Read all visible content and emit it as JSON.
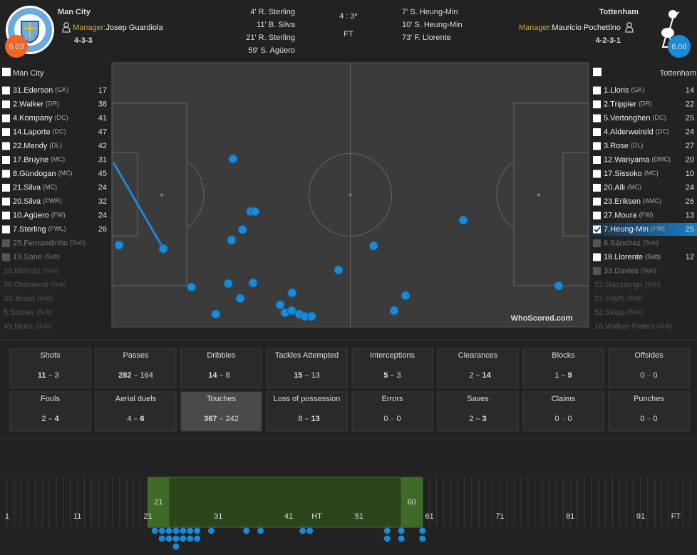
{
  "header": {
    "home": {
      "name": "Man City",
      "rating": 6.03,
      "manager_label": "Manager:",
      "manager": "Josep Guardiola",
      "formation": "4-3-3",
      "goals": [
        "4' R. Sterling",
        "11' B. Silva",
        "21' R. Sterling",
        "59' S. Agüero"
      ]
    },
    "away": {
      "name": "Tottenham",
      "rating": 6.06,
      "manager_label": "Manager:",
      "manager": "Mauricio Pochettino",
      "formation": "4-2-3-1",
      "goals": [
        "7' S. Heung-Min",
        "10' S. Heung-Min",
        "73' F. Llorente"
      ]
    },
    "score": "4 : 3*",
    "status": "FT"
  },
  "lineups": {
    "home": {
      "title": "Man City",
      "players": [
        {
          "name": "31.Ederson",
          "pos": "(GK)",
          "touches": 17,
          "box": "white"
        },
        {
          "name": "2.Walker",
          "pos": "(DR)",
          "touches": 38,
          "box": "white"
        },
        {
          "name": "4.Kompany",
          "pos": "(DC)",
          "touches": 41,
          "box": "white"
        },
        {
          "name": "14.Laporte",
          "pos": "(DC)",
          "touches": 47,
          "box": "white"
        },
        {
          "name": "22.Mendy",
          "pos": "(DL)",
          "touches": 42,
          "box": "white"
        },
        {
          "name": "17.Bruyne",
          "pos": "(MC)",
          "touches": 31,
          "box": "white"
        },
        {
          "name": "8.Gündogan",
          "pos": "(MC)",
          "touches": 45,
          "box": "white"
        },
        {
          "name": "21.Silva",
          "pos": "(MC)",
          "touches": 24,
          "box": "white"
        },
        {
          "name": "20.Silva",
          "pos": "(FWR)",
          "touches": 32,
          "box": "white"
        },
        {
          "name": "10.Agüero",
          "pos": "(FW)",
          "touches": 24,
          "box": "white"
        },
        {
          "name": "7.Sterling",
          "pos": "(FWL)",
          "touches": 26,
          "box": "white"
        },
        {
          "name": "25.Fernandinho",
          "pos": "(Sub)",
          "box": "grey"
        },
        {
          "name": "19.Sané",
          "pos": "(Sub)",
          "box": "grey"
        },
        {
          "name": "26.Mahrez",
          "pos": "(Sub)"
        },
        {
          "name": "30.Otamendi",
          "pos": "(Sub)"
        },
        {
          "name": "33.Jesus",
          "pos": "(Sub)"
        },
        {
          "name": "5.Stones",
          "pos": "(Sub)"
        },
        {
          "name": "49.Muric",
          "pos": "(Sub)"
        }
      ]
    },
    "away": {
      "title": "Tottenham",
      "players": [
        {
          "name": "1.Lloris",
          "pos": "(GK)",
          "touches": 14,
          "box": "white"
        },
        {
          "name": "2.Trippier",
          "pos": "(DR)",
          "touches": 22,
          "box": "white"
        },
        {
          "name": "5.Vertonghen",
          "pos": "(DC)",
          "touches": 25,
          "box": "white"
        },
        {
          "name": "4.Alderweireld",
          "pos": "(DC)",
          "touches": 24,
          "box": "white"
        },
        {
          "name": "3.Rose",
          "pos": "(DL)",
          "touches": 27,
          "box": "white"
        },
        {
          "name": "12.Wanyama",
          "pos": "(DMC)",
          "touches": 20,
          "box": "white"
        },
        {
          "name": "17.Sissoko",
          "pos": "(MC)",
          "touches": 10,
          "box": "white"
        },
        {
          "name": "20.Alli",
          "pos": "(MC)",
          "touches": 24,
          "box": "white"
        },
        {
          "name": "23.Eriksen",
          "pos": "(AMC)",
          "touches": 26,
          "box": "white"
        },
        {
          "name": "27.Moura",
          "pos": "(FW)",
          "touches": 13,
          "box": "white"
        },
        {
          "name": "7.Heung-Min",
          "pos": "(FW)",
          "touches": 25,
          "box": "checked"
        },
        {
          "name": "6.Sánchez",
          "pos": "(Sub)",
          "box": "grey"
        },
        {
          "name": "18.Llorente",
          "pos": "(Sub)",
          "touches": 12,
          "box": "white"
        },
        {
          "name": "33.Davies",
          "pos": "(Sub)",
          "box": "grey"
        },
        {
          "name": "22.Gazzaniga",
          "pos": "(Sub)"
        },
        {
          "name": "21.Foyth",
          "pos": "(Sub)"
        },
        {
          "name": "52.Skipp",
          "pos": "(Sub)"
        },
        {
          "name": "16.Walker-Peters",
          "pos": "(Sub)"
        }
      ]
    }
  },
  "pitch": {
    "xlim": [
      0,
      100
    ],
    "ylim": [
      0,
      100
    ],
    "color": "#1a8ad8",
    "watermark": "WhoScored.com",
    "touches": {
      "x": [
        1.5,
        10.8,
        16.7,
        21.8,
        24.4,
        26.9,
        25.4,
        25.1,
        27.4,
        29.1,
        30.0,
        29.6,
        35.3,
        36.3,
        37.7,
        37.8,
        39.3,
        40.5,
        41.9,
        47.5,
        54.9,
        59.2,
        61.6,
        73.7,
        93.7
      ],
      "y": [
        69.0,
        70.4,
        84.9,
        95.1,
        83.6,
        89.2,
        36.4,
        67.1,
        63.1,
        56.3,
        56.3,
        83.3,
        91.6,
        94.6,
        93.8,
        87.1,
        95.1,
        96.0,
        96.0,
        78.4,
        69.3,
        93.8,
        88.1,
        59.6,
        84.4
      ]
    },
    "passes": [
      {
        "x": [
          0.3,
          10.8
        ],
        "y": [
          37.7,
          70.4
        ]
      }
    ]
  },
  "stats": [
    {
      "label": "Shots",
      "home": 11,
      "away": 3
    },
    {
      "label": "Passes",
      "home": 282,
      "away": 164
    },
    {
      "label": "Dribbles",
      "home": 14,
      "away": 8
    },
    {
      "label": "Tackles Attempted",
      "home": 15,
      "away": 13
    },
    {
      "label": "Interceptions",
      "home": 5,
      "away": 3
    },
    {
      "label": "Clearances",
      "home": 2,
      "away": 14
    },
    {
      "label": "Blocks",
      "home": 1,
      "away": 9
    },
    {
      "label": "Offsides",
      "home": 0,
      "away": 0
    },
    {
      "label": "Fouls",
      "home": 2,
      "away": 4
    },
    {
      "label": "Aerial duels",
      "home": 4,
      "away": 6
    },
    {
      "label": "Touches",
      "home": 367,
      "away": 242,
      "selected": true
    },
    {
      "label": "Loss of possession",
      "home": 8,
      "away": 13
    },
    {
      "label": "Errors",
      "home": 0,
      "away": 0
    },
    {
      "label": "Saves",
      "home": 2,
      "away": 3
    },
    {
      "label": "Claims",
      "home": 0,
      "away": 0
    },
    {
      "label": "Punches",
      "home": 0,
      "away": 0
    }
  ],
  "timeline": {
    "xlim": [
      0,
      99
    ],
    "xticks": [
      1,
      11,
      21,
      31,
      41,
      {
        "value": 45,
        "label": "HT"
      },
      51,
      61,
      71,
      81,
      91,
      {
        "value": 96,
        "label": "FT"
      }
    ],
    "range": [
      21,
      60
    ],
    "events": {
      "minute": [
        22,
        23,
        24,
        25,
        26,
        27,
        28,
        30,
        35,
        37,
        43,
        44,
        55,
        57,
        60
      ],
      "count": [
        1,
        2,
        2,
        3,
        2,
        2,
        2,
        1,
        1,
        1,
        1,
        1,
        2,
        2,
        2
      ]
    }
  }
}
